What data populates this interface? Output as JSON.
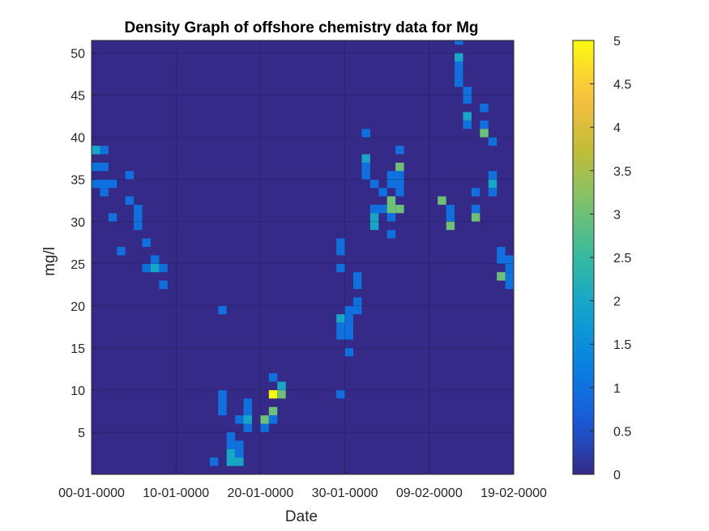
{
  "chart_data": {
    "type": "heatmap",
    "title": "Density Graph of offshore chemistry data for Mg",
    "xlabel": "Date",
    "ylabel": "mg/l",
    "x_tick_labels": [
      "00-01-0000",
      "10-01-0000",
      "20-01-0000",
      "30-01-0000",
      "09-02-0000",
      "19-02-0000"
    ],
    "x_tick_days": [
      0,
      10,
      20,
      30,
      40,
      50
    ],
    "xlim": [
      0,
      50
    ],
    "y_ticks": [
      5,
      10,
      15,
      20,
      25,
      30,
      35,
      40,
      45,
      50
    ],
    "ylim": [
      0,
      51.5
    ],
    "colorbar": {
      "ticks": [
        0,
        0.5,
        1,
        1.5,
        2,
        2.5,
        3,
        3.5,
        4,
        4.5,
        5
      ],
      "tick_labels": [
        "0",
        "0.5",
        "1",
        "1.5",
        "2",
        "2.5",
        "3",
        "3.5",
        "4",
        "4.5",
        "5"
      ],
      "range": [
        0,
        5
      ],
      "colormap": "parula"
    },
    "grid": true,
    "background_value": 0,
    "cells": [
      [
        0,
        38,
        2
      ],
      [
        1,
        38,
        1
      ],
      [
        0,
        36,
        1
      ],
      [
        1,
        36,
        1
      ],
      [
        0,
        34,
        1
      ],
      [
        1,
        34,
        1
      ],
      [
        2,
        34,
        1
      ],
      [
        1,
        33,
        1
      ],
      [
        2,
        30,
        1
      ],
      [
        3,
        26,
        1
      ],
      [
        4,
        35,
        1
      ],
      [
        4,
        32,
        1
      ],
      [
        5,
        31,
        1
      ],
      [
        5,
        30,
        1
      ],
      [
        5,
        29,
        1
      ],
      [
        6,
        27,
        1
      ],
      [
        6,
        24,
        1
      ],
      [
        7,
        25,
        1
      ],
      [
        7,
        24,
        2
      ],
      [
        8,
        24,
        1
      ],
      [
        8,
        22,
        1
      ],
      [
        15,
        19,
        1
      ],
      [
        15,
        9,
        1
      ],
      [
        15,
        8,
        1
      ],
      [
        15,
        7,
        1
      ],
      [
        14,
        1,
        1
      ],
      [
        16,
        4,
        1
      ],
      [
        16,
        3,
        1
      ],
      [
        16,
        2,
        2
      ],
      [
        16,
        1,
        2
      ],
      [
        17,
        3,
        1
      ],
      [
        17,
        2,
        1
      ],
      [
        17,
        1,
        2
      ],
      [
        17,
        6,
        1
      ],
      [
        18,
        8,
        1
      ],
      [
        18,
        7,
        1
      ],
      [
        18,
        6,
        2
      ],
      [
        18,
        5,
        1
      ],
      [
        20,
        6,
        3
      ],
      [
        20,
        5,
        1
      ],
      [
        21,
        11,
        1
      ],
      [
        21,
        9,
        5
      ],
      [
        21,
        7,
        3
      ],
      [
        21,
        6,
        1
      ],
      [
        22,
        10,
        2
      ],
      [
        22,
        9,
        3
      ],
      [
        29,
        27,
        1
      ],
      [
        29,
        26,
        1
      ],
      [
        29,
        24,
        1
      ],
      [
        29,
        18,
        2
      ],
      [
        29,
        17,
        1
      ],
      [
        29,
        16,
        1
      ],
      [
        29,
        9,
        1
      ],
      [
        30,
        18,
        1
      ],
      [
        30,
        17,
        1
      ],
      [
        30,
        16,
        1
      ],
      [
        30,
        14,
        1
      ],
      [
        30,
        19,
        1
      ],
      [
        31,
        20,
        1
      ],
      [
        31,
        19,
        1
      ],
      [
        31,
        23,
        1
      ],
      [
        31,
        22,
        1
      ],
      [
        32,
        40,
        1
      ],
      [
        32,
        37,
        2
      ],
      [
        32,
        36,
        1
      ],
      [
        32,
        35,
        1
      ],
      [
        33,
        34,
        1
      ],
      [
        33,
        31,
        1
      ],
      [
        33,
        30,
        2
      ],
      [
        33,
        29,
        2
      ],
      [
        34,
        33,
        1
      ],
      [
        34,
        31,
        1
      ],
      [
        35,
        32,
        3
      ],
      [
        35,
        31,
        3
      ],
      [
        35,
        30,
        1
      ],
      [
        35,
        35,
        1
      ],
      [
        35,
        34,
        1
      ],
      [
        35,
        28,
        1
      ],
      [
        36,
        38,
        1
      ],
      [
        36,
        36,
        3
      ],
      [
        36,
        35,
        1
      ],
      [
        36,
        34,
        1
      ],
      [
        36,
        33,
        1
      ],
      [
        36,
        31,
        3
      ],
      [
        41,
        32,
        3
      ],
      [
        42,
        31,
        1
      ],
      [
        42,
        30,
        1
      ],
      [
        42,
        29,
        3
      ],
      [
        43,
        51,
        1
      ],
      [
        43,
        49,
        2
      ],
      [
        43,
        48,
        1
      ],
      [
        43,
        47,
        1
      ],
      [
        43,
        46,
        1
      ],
      [
        44,
        45,
        1
      ],
      [
        44,
        44,
        1
      ],
      [
        44,
        42,
        2
      ],
      [
        44,
        41,
        1
      ],
      [
        45,
        33,
        1
      ],
      [
        45,
        31,
        1
      ],
      [
        45,
        30,
        3
      ],
      [
        46,
        43,
        1
      ],
      [
        46,
        41,
        1
      ],
      [
        46,
        40,
        3
      ],
      [
        47,
        39,
        1
      ],
      [
        47,
        35,
        1
      ],
      [
        47,
        34,
        2
      ],
      [
        47,
        33,
        1
      ],
      [
        48,
        26,
        1
      ],
      [
        48,
        25,
        1
      ],
      [
        48,
        23,
        3
      ],
      [
        49,
        25,
        1
      ],
      [
        49,
        24,
        1
      ],
      [
        49,
        23,
        1
      ],
      [
        49,
        22,
        1
      ]
    ]
  }
}
